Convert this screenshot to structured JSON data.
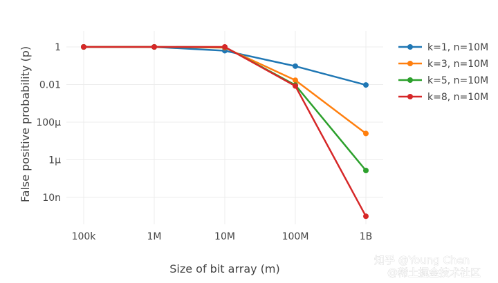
{
  "chart_data": {
    "type": "line",
    "xlabel": "Size of bit array (m)",
    "ylabel": "False positive probability (p)",
    "x_scale": "log",
    "y_scale": "log",
    "x": [
      100000,
      1000000,
      10000000,
      100000000,
      1000000000
    ],
    "x_tick_labels": [
      "100k",
      "1M",
      "10M",
      "100M",
      "1B"
    ],
    "y_tick_values": [
      1,
      0.01,
      0.0001,
      1e-06,
      1e-08
    ],
    "y_tick_labels": [
      "1",
      "0.01",
      "100μ",
      "1μ",
      "10n"
    ],
    "ylim": [
      1e-10,
      2
    ],
    "grid": true,
    "legend_position": "top-right",
    "series": [
      {
        "name": "k=1, n=10M",
        "color": "#1f77b4",
        "values": [
          1,
          1,
          0.63,
          0.095,
          0.0095
        ]
      },
      {
        "name": "k=3, n=10M",
        "color": "#ff7f0e",
        "values": [
          1,
          1,
          0.92,
          0.017,
          2.5e-05
        ]
      },
      {
        "name": "k=5, n=10M",
        "color": "#2ca02c",
        "values": [
          1,
          1,
          0.98,
          0.0094,
          2.7e-07
        ]
      },
      {
        "name": "k=8, n=10M",
        "color": "#d62728",
        "values": [
          1,
          1,
          1,
          0.0084,
          1e-09
        ]
      }
    ]
  },
  "watermarks": {
    "line1": "知乎 @Young Chen",
    "line2": "@稀土掘金技术社区"
  }
}
